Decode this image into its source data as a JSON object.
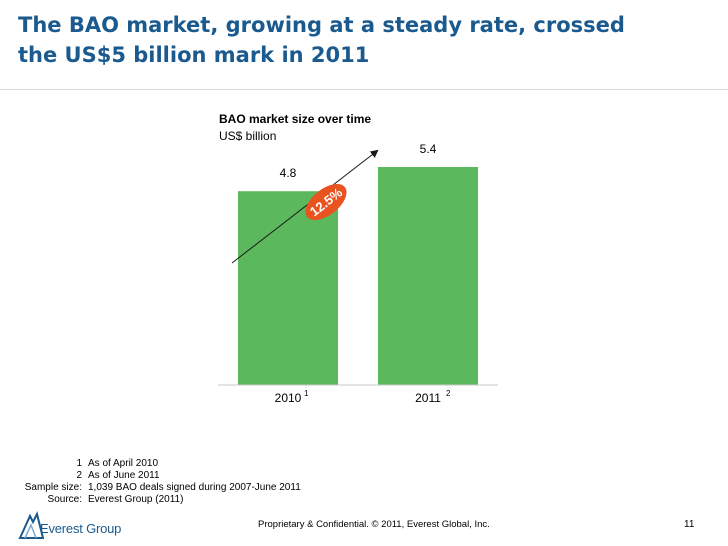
{
  "slide": {
    "title_line1": "The BAO market, growing at a steady rate, crossed",
    "title_line2": "the US$5 billion mark in 2011",
    "title_color": "#1a5a8e",
    "bar_color": "#5cb85c",
    "growth_badge_color": "#e8531f"
  },
  "chart_data": {
    "type": "bar",
    "title": "BAO market size over time",
    "subtitle": "US$ billion",
    "categories": [
      "2010",
      "2011"
    ],
    "category_superscripts": [
      "1",
      "2"
    ],
    "values": [
      4.8,
      5.4
    ],
    "value_labels": [
      "4.8",
      "5.4"
    ],
    "growth_label": "12.5%",
    "grid": false,
    "legend": "none"
  },
  "footnotes": [
    {
      "key": "1",
      "text": "As of April 2010"
    },
    {
      "key": "2",
      "text": "As of June 2011"
    },
    {
      "key": "Sample size:",
      "text": "1,039 BAO deals signed during 2007-June 2011"
    },
    {
      "key": "Source:",
      "text": "Everest Group (2011)"
    }
  ],
  "footer": {
    "logo_text": "Everest Group",
    "confidential": "Proprietary & Confidential. © 2011, Everest Global, Inc.",
    "page_number": "11"
  }
}
